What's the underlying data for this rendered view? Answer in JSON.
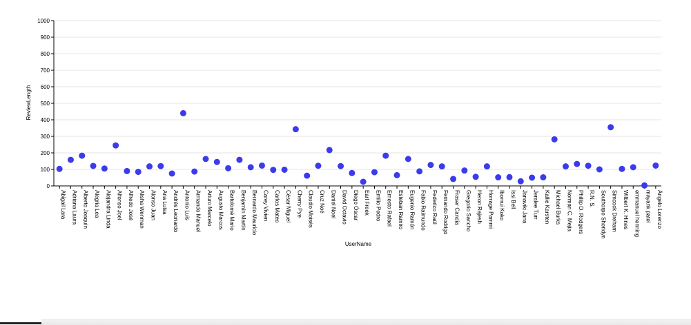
{
  "chart_data": {
    "type": "scatter",
    "xlabel": "UserName",
    "ylabel": "ReviewLength",
    "ylim": [
      0,
      1000
    ],
    "yticks": [
      0,
      100,
      200,
      300,
      400,
      500,
      600,
      700,
      800,
      900,
      1000
    ],
    "grid": true,
    "point_color": "#3b3beb",
    "categories": [
      "Abigail Lara",
      "Adriana Laura",
      "Alberto Joaquín",
      "Alegria Lea",
      "Alejandra Linda",
      "Alfonso Joel",
      "Alfredo José",
      "Alisha Wenman",
      "Alonso Juan",
      "Ana Luisa",
      "Andrés Leonardo",
      "Antonio Luis",
      "Armando Manuel",
      "Arturo Marcelo",
      "Augusto Marcos",
      "Bartolomé Mario",
      "Benjamín Martín",
      "Bernardo Mauricio",
      "Carey Vivien",
      "Carlos Mateo",
      "César Miguel",
      "Cherry Pye",
      "Claudio Moisés",
      "Cruz Noé",
      "Daniel Noel",
      "David Octavio",
      "Diego Óscar",
      "Earl Freek",
      "Emilio Pedro",
      "Ernesto Rafael",
      "Esteban Ramiro",
      "Eugenio Ramón",
      "Fabio Raimundo",
      "Federico Raúl",
      "Fernando Rodrigo",
      "Fraser Candia",
      "Gregorio Sancho",
      "Heron Rajesh",
      "Horrage Pammi",
      "Ibomui Koko",
      "Issi Bell",
      "Janaviki Jana",
      "Jeralee Turr",
      "Kallie Karsten",
      "Michael Burks",
      "Norman C. Mejia",
      "Phillip D. Rodgers",
      "R.N. S.",
      "Southorpe Sheridyn",
      "Simcock Dreham",
      "Wilbert K. Hines",
      "emmanuel henning",
      "mayank patel",
      "Ángelo Lorenzo"
    ],
    "values": [
      103,
      158,
      183,
      121,
      105,
      245,
      90,
      85,
      118,
      120,
      75,
      440,
      87,
      163,
      145,
      107,
      158,
      113,
      123,
      97,
      98,
      343,
      62,
      122,
      217,
      120,
      78,
      25,
      83,
      183,
      65,
      163,
      88,
      127,
      118,
      42,
      93,
      55,
      118,
      52,
      53,
      28,
      50,
      52,
      282,
      118,
      133,
      122,
      100,
      355,
      103,
      113,
      3,
      123
    ]
  }
}
